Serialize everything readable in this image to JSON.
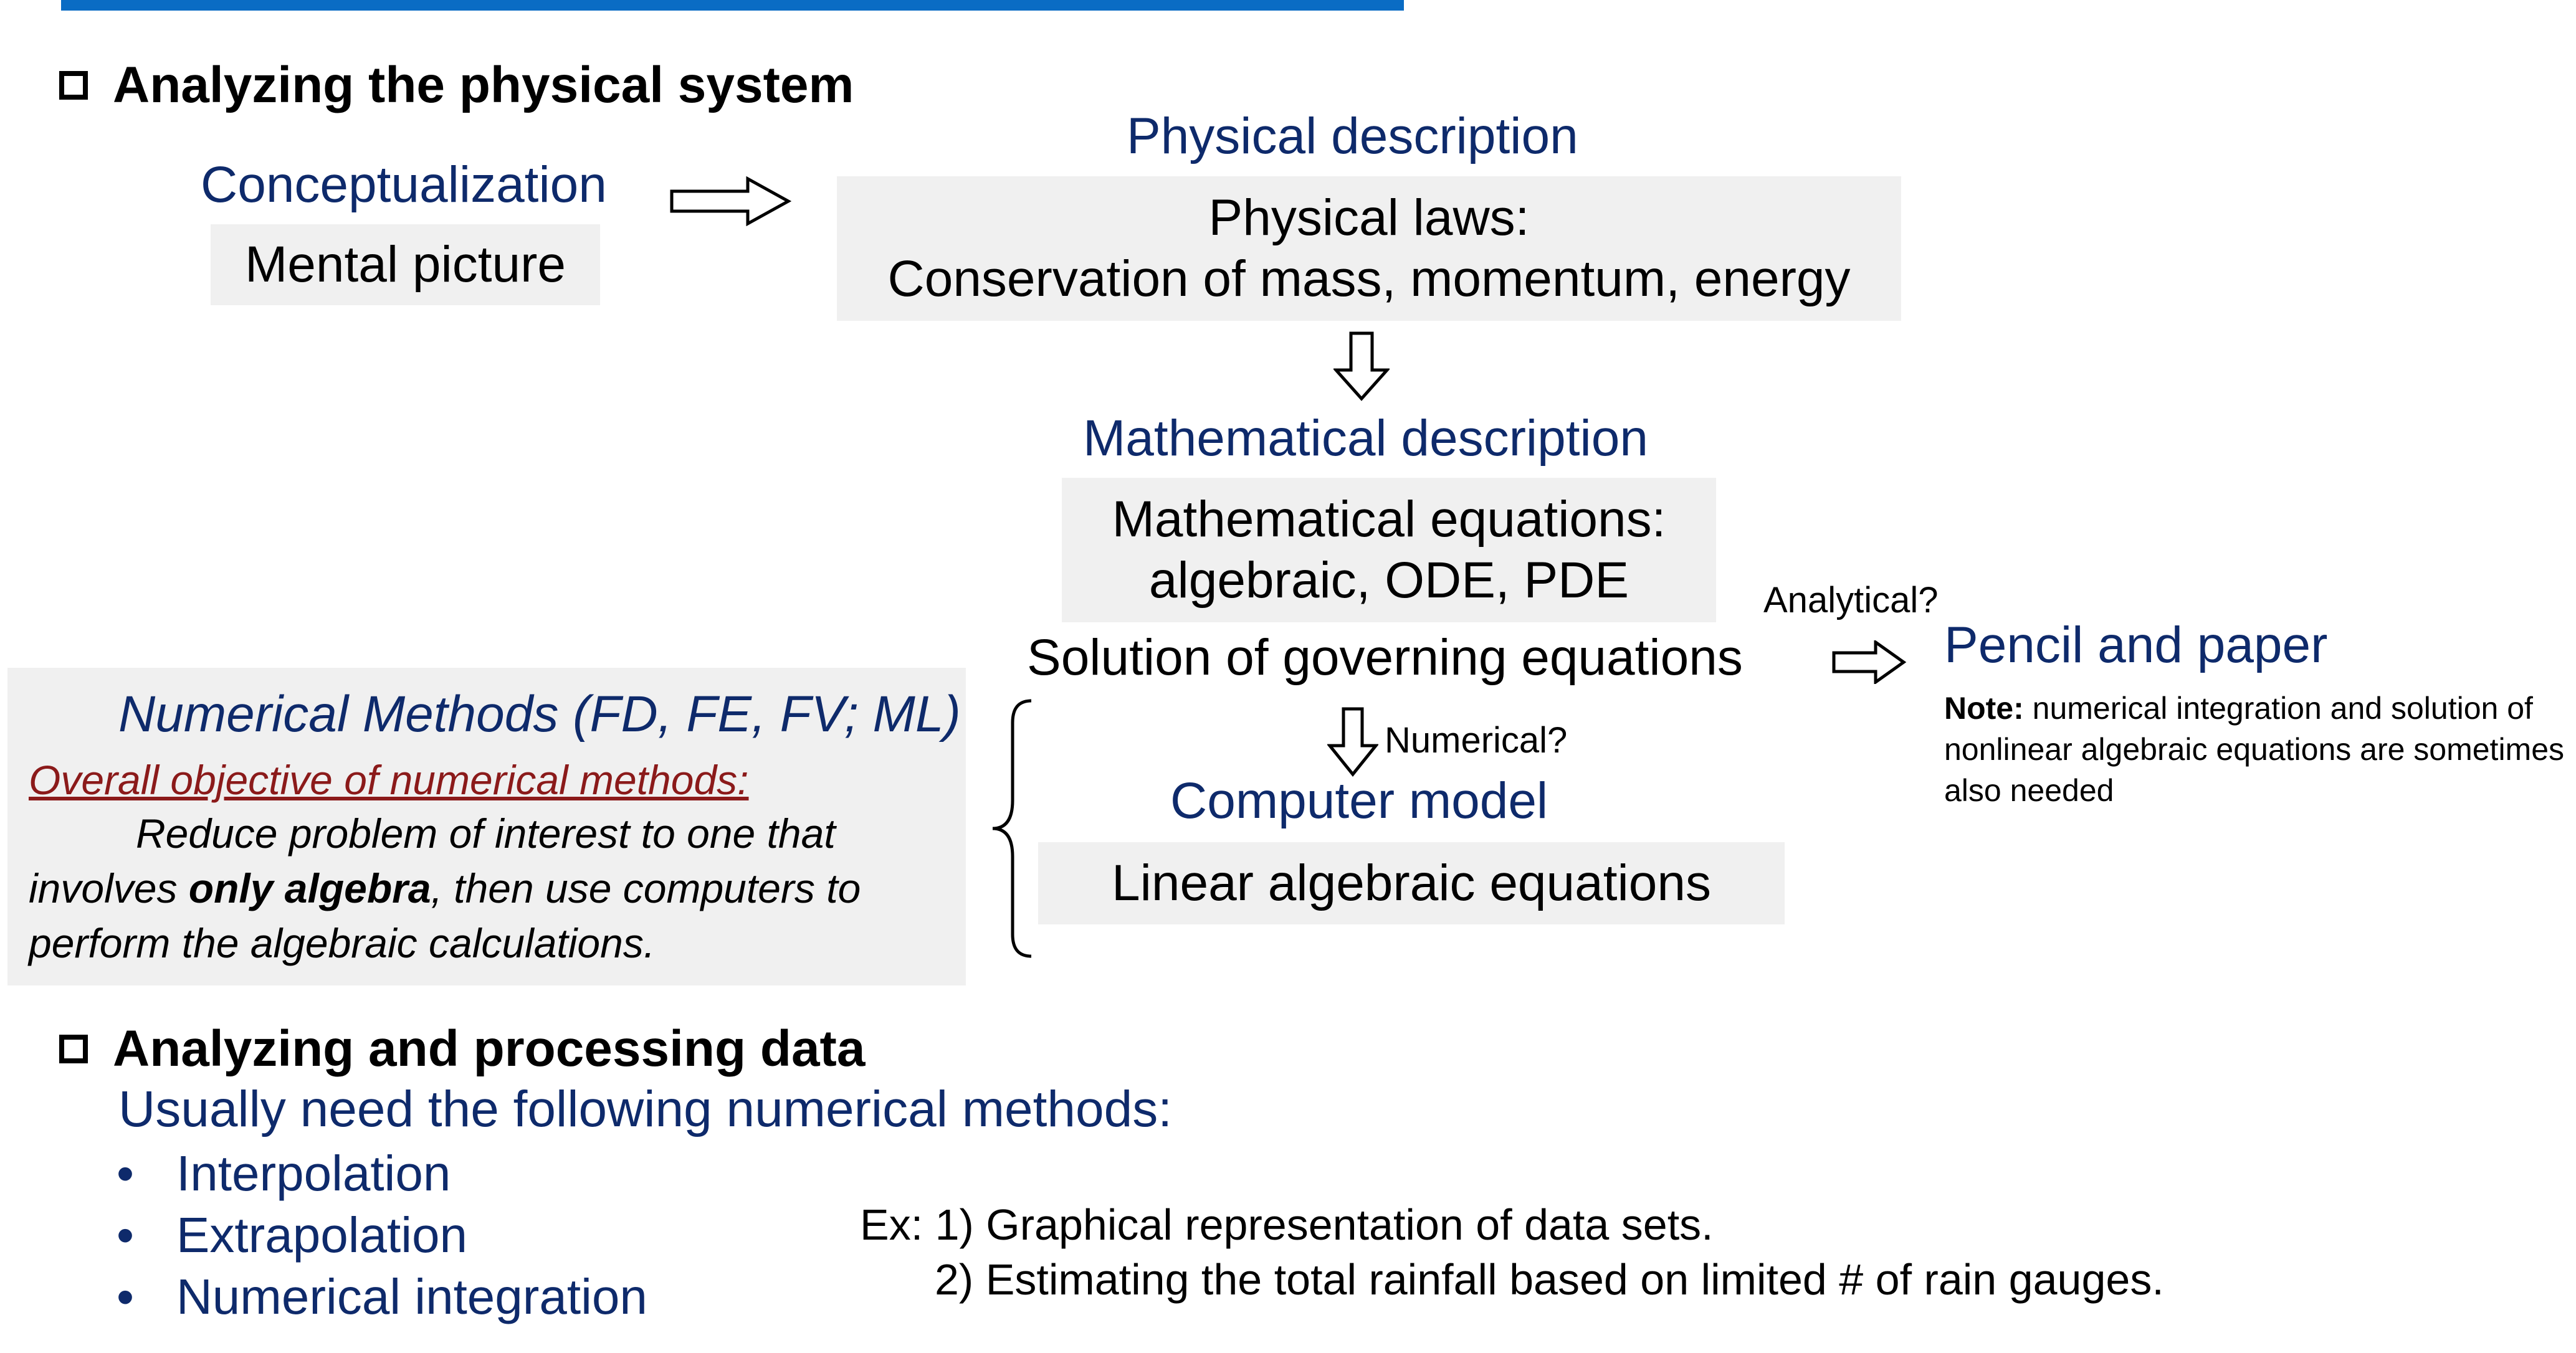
{
  "section1": {
    "title": "Analyzing the physical system"
  },
  "conceptualization": {
    "label": "Conceptualization",
    "box": "Mental picture"
  },
  "physical": {
    "label": "Physical description",
    "line1": "Physical laws:",
    "line2": "Conservation of mass, momentum, energy"
  },
  "mathematical": {
    "label": "Mathematical description",
    "line1": "Mathematical equations:",
    "line2": "algebraic, ODE, PDE"
  },
  "solution": {
    "text": "Solution of governing equations"
  },
  "analytical": {
    "label": "Analytical?",
    "result": "Pencil and paper",
    "note_bold": "Note:",
    "note_text": " numerical integration and solution of nonlinear algebraic equations are sometimes also needed"
  },
  "numerical": {
    "label": "Numerical?"
  },
  "computer": {
    "label": "Computer model",
    "box": "Linear algebraic equations"
  },
  "methods": {
    "title": "Numerical Methods (FD, FE, FV; ML)",
    "objective": "Overall objective of numerical methods:",
    "body_pre": "Reduce problem of interest to one that involves ",
    "body_bold": "only algebra",
    "body_post": ", then use computers to perform the algebraic calculations."
  },
  "section2": {
    "title": "Analyzing and processing data",
    "intro": "Usually need the following numerical methods:",
    "bullet_symbol": "•",
    "items": [
      "Interpolation",
      "Extrapolation",
      "Numerical integration"
    ]
  },
  "examples": {
    "line1": "Ex: 1) Graphical representation of data sets.",
    "line2": "2) Estimating the total rainfall based on limited # of rain gauges."
  },
  "colors": {
    "top_bar": "#0a6cc4",
    "heading_blue": "#0e2a6b",
    "objective_red": "#8b1a1a",
    "box_gray": "#f0f0f0"
  }
}
